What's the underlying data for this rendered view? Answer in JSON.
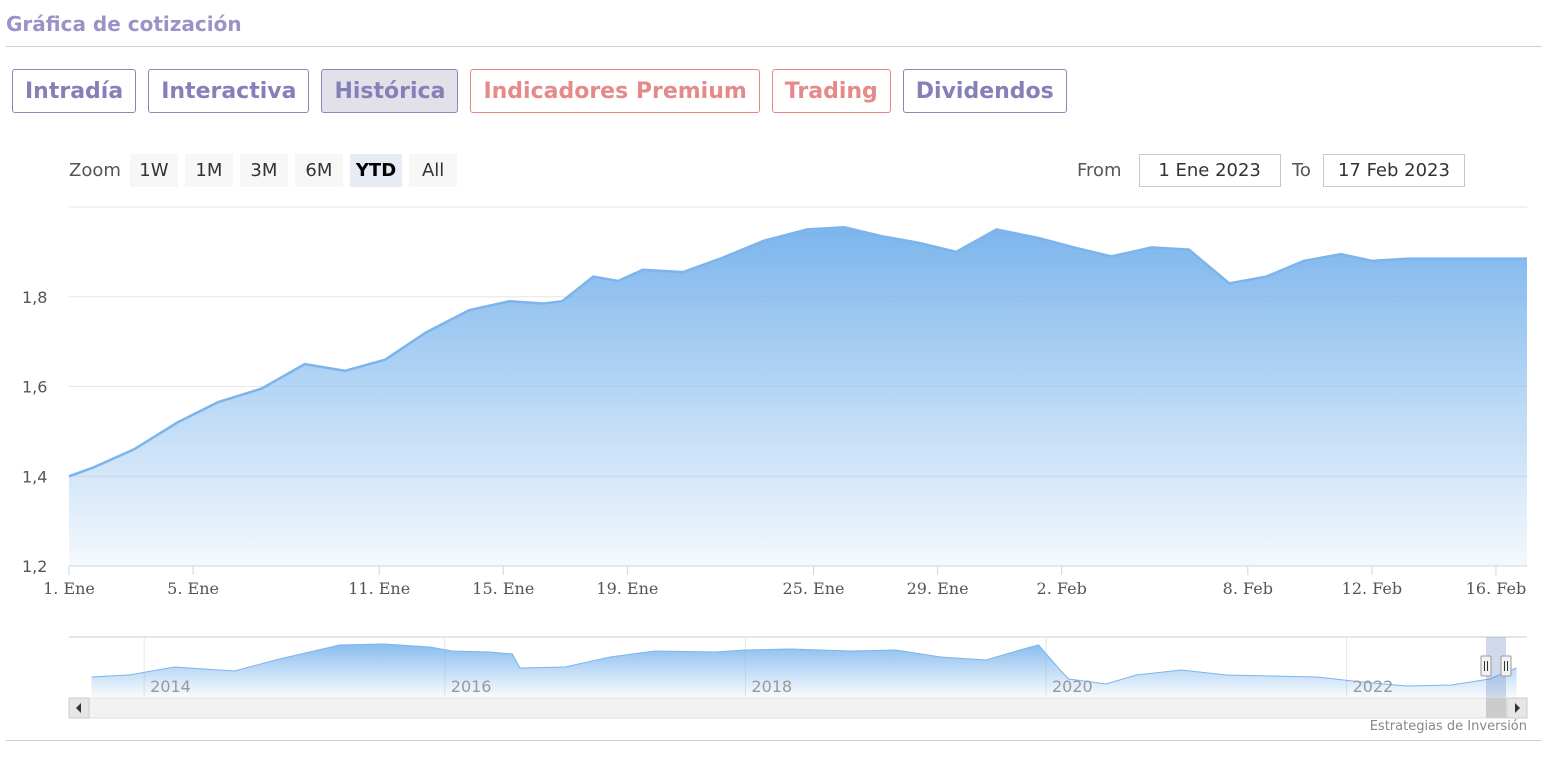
{
  "header": {
    "title": "Gráfica de cotización"
  },
  "tabs": [
    {
      "label": "Intradía",
      "kind": "normal"
    },
    {
      "label": "Interactiva",
      "kind": "normal"
    },
    {
      "label": "Histórica",
      "kind": "active"
    },
    {
      "label": "Indicadores Premium",
      "kind": "premium"
    },
    {
      "label": "Trading",
      "kind": "premium"
    },
    {
      "label": "Dividendos",
      "kind": "normal"
    }
  ],
  "zoom": {
    "label": "Zoom",
    "buttons": [
      "1W",
      "1M",
      "3M",
      "6M",
      "YTD",
      "All"
    ],
    "selected": "YTD"
  },
  "range": {
    "from_label": "From",
    "from_value": "1 Ene 2023",
    "to_label": "To",
    "to_value": "17 Feb 2023"
  },
  "credits": "Estrategias de Inversión",
  "colors": {
    "line": "#7cb5ec",
    "area_top": "#7cb5ec",
    "grid": "#e6e6e6",
    "tab_accent": "#8580b8",
    "tab_premium": "#e58a8a"
  },
  "chart_data": {
    "type": "area",
    "title": "",
    "xlabel": "",
    "ylabel": "",
    "ylim": [
      1.2,
      2.0
    ],
    "yticks": [
      {
        "value": 1.2,
        "label": "1,2"
      },
      {
        "value": 1.4,
        "label": "1,4"
      },
      {
        "value": 1.6,
        "label": "1,6"
      },
      {
        "value": 1.8,
        "label": "1,8"
      }
    ],
    "xlim": [
      0,
      47
    ],
    "xticks": [
      {
        "day": 0,
        "label": "1. Ene"
      },
      {
        "day": 4,
        "label": "5. Ene"
      },
      {
        "day": 10,
        "label": "11. Ene"
      },
      {
        "day": 14,
        "label": "15. Ene"
      },
      {
        "day": 18,
        "label": "19. Ene"
      },
      {
        "day": 24,
        "label": "25. Ene"
      },
      {
        "day": 28,
        "label": "29. Ene"
      },
      {
        "day": 32,
        "label": "2. Feb"
      },
      {
        "day": 38,
        "label": "8. Feb"
      },
      {
        "day": 42,
        "label": "12. Feb"
      },
      {
        "day": 46,
        "label": "16. Feb"
      }
    ],
    "x": [
      0,
      0.8,
      2.1,
      3.5,
      4.8,
      6.2,
      7.6,
      8.9,
      10.2,
      11.5,
      12.9,
      14.2,
      15.3,
      15.9,
      16.9,
      17.7,
      18.5,
      19.8,
      21.0,
      22.4,
      23.8,
      25.0,
      26.2,
      27.4,
      28.6,
      29.9,
      31.3,
      32.4,
      33.6,
      34.9,
      36.1,
      37.4,
      38.6,
      39.8,
      41.0,
      42.0,
      43.2,
      44.3,
      45.4,
      46.3,
      47.0
    ],
    "y": [
      1.4,
      1.42,
      1.46,
      1.52,
      1.565,
      1.595,
      1.65,
      1.635,
      1.66,
      1.72,
      1.77,
      1.79,
      1.785,
      1.79,
      1.845,
      1.835,
      1.86,
      1.855,
      1.885,
      1.925,
      1.95,
      1.955,
      1.935,
      1.92,
      1.9,
      1.95,
      1.93,
      1.91,
      1.89,
      1.91,
      1.905,
      1.83,
      1.845,
      1.88,
      1.895,
      1.88,
      1.885,
      1.885,
      1.885,
      1.885,
      1.885
    ],
    "navigator": {
      "xlim": [
        2013.5,
        2023.2
      ],
      "ylim": [
        0,
        3.0
      ],
      "xticks": [
        {
          "year": 2014,
          "label": "2014"
        },
        {
          "year": 2016,
          "label": "2016"
        },
        {
          "year": 2018,
          "label": "2018"
        },
        {
          "year": 2020,
          "label": "2020"
        },
        {
          "year": 2022,
          "label": "2022"
        }
      ],
      "x": [
        2013.65,
        2013.9,
        2014.2,
        2014.6,
        2014.9,
        2015.3,
        2015.6,
        2015.9,
        2016.05,
        2016.3,
        2016.45,
        2016.5,
        2016.8,
        2017.1,
        2017.4,
        2017.8,
        2018.0,
        2018.3,
        2018.7,
        2019.0,
        2019.3,
        2019.6,
        2019.85,
        2019.95,
        2020.1,
        2020.15,
        2020.4,
        2020.6,
        2020.9,
        2021.2,
        2021.5,
        2021.8,
        2022.1,
        2022.4,
        2022.7,
        2022.95,
        2023.13
      ],
      "y": [
        1.0,
        1.1,
        1.5,
        1.3,
        1.9,
        2.6,
        2.65,
        2.5,
        2.3,
        2.25,
        2.15,
        1.45,
        1.5,
        2.0,
        2.3,
        2.25,
        2.35,
        2.4,
        2.3,
        2.35,
        2.0,
        1.85,
        2.4,
        2.6,
        1.3,
        0.9,
        0.65,
        1.1,
        1.35,
        1.1,
        1.05,
        1.0,
        0.75,
        0.55,
        0.6,
        0.9,
        1.45
      ]
    }
  }
}
